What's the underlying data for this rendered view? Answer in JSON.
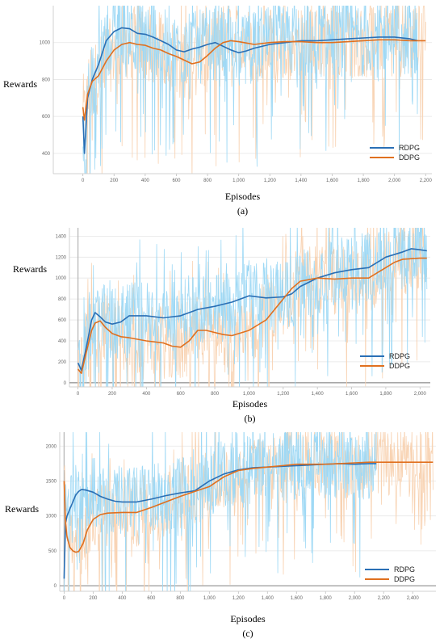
{
  "chart_data": [
    {
      "type": "line",
      "panel_label": "(a)",
      "xlabel": "Episodes",
      "ylabel": "Rewards",
      "xlim": [
        -190,
        2240
      ],
      "ylim": [
        290,
        1200
      ],
      "xticks": [
        0,
        200,
        400,
        600,
        800,
        1000,
        1200,
        1400,
        1600,
        1800,
        2000,
        2200
      ],
      "xtick_labels": [
        "0",
        "200",
        "400",
        "600",
        "800",
        "1,000",
        "1,200",
        "1,400",
        "1,600",
        "1,800",
        "2,000",
        "2,200"
      ],
      "yticks": [
        400,
        600,
        800,
        1000
      ],
      "ytick_labels": [
        "400",
        "600",
        "800",
        "1000"
      ],
      "x_end": 2200,
      "legend": {
        "position": "bottom-right",
        "entries": [
          "RDPG",
          "DDPG"
        ]
      },
      "grid": true,
      "series": [
        {
          "name": "RDPG",
          "color": "#2a6fb5",
          "raw_color": "#9fd9f5",
          "x": [
            0,
            10,
            30,
            60,
            100,
            150,
            200,
            250,
            300,
            350,
            400,
            450,
            500,
            550,
            600,
            650,
            700,
            750,
            800,
            850,
            900,
            950,
            1000,
            1050,
            1100,
            1200,
            1300,
            1400,
            1500,
            1600,
            1700,
            1800,
            1900,
            2000,
            2100,
            2150
          ],
          "y": [
            600,
            400,
            700,
            800,
            880,
            1010,
            1060,
            1080,
            1075,
            1050,
            1045,
            1030,
            1010,
            990,
            960,
            950,
            965,
            975,
            990,
            1000,
            980,
            960,
            945,
            955,
            970,
            990,
            1000,
            1010,
            1010,
            1015,
            1020,
            1025,
            1030,
            1030,
            1020,
            1010
          ]
        },
        {
          "name": "DDPG",
          "color": "#e0701f",
          "raw_color": "#f8d3b3",
          "x": [
            0,
            10,
            30,
            60,
            100,
            150,
            200,
            250,
            300,
            350,
            400,
            450,
            500,
            550,
            600,
            650,
            700,
            750,
            800,
            850,
            900,
            950,
            1000,
            1100,
            1200,
            1300,
            1400,
            1500,
            1600,
            1700,
            1800,
            1900,
            2000,
            2100,
            2150,
            2200
          ],
          "y": [
            650,
            580,
            720,
            790,
            820,
            900,
            960,
            990,
            1000,
            990,
            985,
            970,
            960,
            940,
            925,
            905,
            885,
            895,
            930,
            970,
            1000,
            1010,
            1005,
            990,
            1000,
            1005,
            1005,
            1000,
            1000,
            1005,
            1010,
            1015,
            1015,
            1010,
            1010,
            1010
          ]
        }
      ]
    },
    {
      "type": "line",
      "panel_label": "(b)",
      "xlabel": "Episodes",
      "ylabel": "Rewards",
      "xlim": [
        -50,
        2060
      ],
      "ylim": [
        -40,
        1480
      ],
      "xticks": [
        0,
        200,
        400,
        600,
        800,
        1000,
        1200,
        1400,
        1600,
        1800,
        2000
      ],
      "xtick_labels": [
        "0",
        "200",
        "400",
        "600",
        "800",
        "1,000",
        "1,200",
        "1,400",
        "1,600",
        "1,800",
        "2,000"
      ],
      "yticks": [
        0,
        200,
        400,
        600,
        800,
        1000,
        1200,
        1400
      ],
      "ytick_labels": [
        "0",
        "200",
        "400",
        "600",
        "800",
        "1000",
        "1200",
        "1400"
      ],
      "x_end": 2040,
      "legend": {
        "position": "bottom-right",
        "entries": [
          "RDPG",
          "DDPG"
        ]
      },
      "grid": true,
      "series": [
        {
          "name": "RDPG",
          "color": "#2a6fb5",
          "raw_color": "#9fd9f5",
          "x": [
            0,
            20,
            50,
            80,
            100,
            130,
            160,
            200,
            250,
            300,
            400,
            500,
            600,
            700,
            800,
            900,
            1000,
            1100,
            1200,
            1250,
            1300,
            1400,
            1500,
            1600,
            1700,
            1750,
            1800,
            1900,
            1950,
            2000,
            2040
          ],
          "y": [
            190,
            120,
            350,
            600,
            670,
            630,
            580,
            560,
            580,
            640,
            640,
            620,
            640,
            700,
            730,
            770,
            830,
            810,
            820,
            850,
            920,
            1000,
            1050,
            1080,
            1100,
            1150,
            1200,
            1250,
            1280,
            1270,
            1260
          ]
        },
        {
          "name": "DDPG",
          "color": "#e0701f",
          "raw_color": "#f8d3b3",
          "x": [
            0,
            20,
            50,
            80,
            100,
            130,
            160,
            200,
            250,
            300,
            400,
            500,
            550,
            600,
            650,
            700,
            750,
            800,
            850,
            900,
            1000,
            1100,
            1200,
            1250,
            1300,
            1400,
            1500,
            1600,
            1700,
            1750,
            1800,
            1850,
            1900,
            2000,
            2040
          ],
          "y": [
            130,
            90,
            300,
            500,
            570,
            590,
            530,
            470,
            440,
            430,
            400,
            380,
            350,
            340,
            400,
            500,
            500,
            480,
            460,
            450,
            500,
            600,
            800,
            900,
            970,
            1000,
            990,
            1000,
            1000,
            1050,
            1100,
            1150,
            1180,
            1190,
            1190
          ]
        }
      ]
    },
    {
      "type": "line",
      "panel_label": "(c)",
      "xlabel": "Episodes",
      "ylabel": "Rewards",
      "xlim": [
        -30,
        2560
      ],
      "ylim": [
        -80,
        2200
      ],
      "xticks": [
        0,
        200,
        400,
        600,
        800,
        1000,
        1200,
        1400,
        1600,
        1800,
        2000,
        2200,
        2400
      ],
      "xtick_labels": [
        "0",
        "200",
        "400",
        "600",
        "800",
        "1,000",
        "1,200",
        "1,400",
        "1,600",
        "1,800",
        "2,000",
        "2,200",
        "2,400"
      ],
      "yticks": [
        0,
        500,
        1000,
        1500,
        2000
      ],
      "ytick_labels": [
        "0",
        "500",
        "1000",
        "1500",
        "2000"
      ],
      "x_end": 2540,
      "legend": {
        "position": "bottom-right",
        "entries": [
          "RDPG",
          "DDPG"
        ]
      },
      "grid": true,
      "series": [
        {
          "name": "RDPG",
          "color": "#2a6fb5",
          "raw_color": "#9fd9f5",
          "x": [
            0,
            10,
            20,
            40,
            60,
            80,
            100,
            120,
            150,
            200,
            250,
            300,
            350,
            400,
            500,
            600,
            700,
            800,
            900,
            1000,
            1100,
            1200,
            1300,
            1400,
            1500,
            1600,
            1700,
            1800,
            1900,
            2000,
            2100,
            2150
          ],
          "y": [
            100,
            900,
            1000,
            1100,
            1200,
            1300,
            1350,
            1380,
            1370,
            1340,
            1280,
            1240,
            1210,
            1200,
            1200,
            1240,
            1290,
            1330,
            1360,
            1500,
            1600,
            1660,
            1690,
            1700,
            1710,
            1720,
            1730,
            1740,
            1750,
            1740,
            1750,
            1750
          ]
        },
        {
          "name": "DDPG",
          "color": "#e0701f",
          "raw_color": "#f8d3b3",
          "x": [
            0,
            10,
            20,
            40,
            60,
            80,
            100,
            130,
            160,
            200,
            250,
            300,
            400,
            500,
            600,
            700,
            800,
            900,
            1000,
            1100,
            1200,
            1300,
            1400,
            1500,
            1600,
            1700,
            1800,
            1900,
            2000,
            2100,
            2200,
            2300,
            2400,
            2500,
            2540
          ],
          "y": [
            1500,
            900,
            700,
            550,
            500,
            480,
            490,
            600,
            800,
            950,
            1020,
            1040,
            1050,
            1050,
            1120,
            1200,
            1280,
            1350,
            1420,
            1560,
            1650,
            1680,
            1700,
            1720,
            1740,
            1740,
            1740,
            1750,
            1760,
            1770,
            1770,
            1770,
            1770,
            1770,
            1770
          ]
        }
      ]
    }
  ]
}
